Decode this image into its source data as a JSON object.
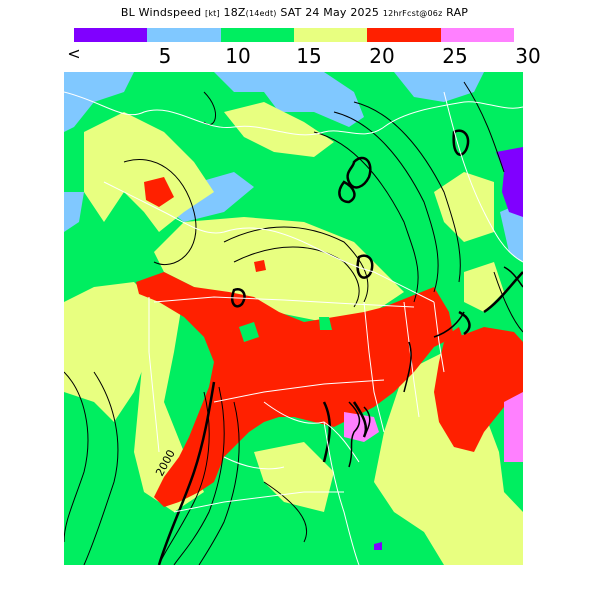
{
  "title": {
    "main": "BL Windspeed",
    "unit": "[kt]",
    "valid": "18Z",
    "local": "(14edt)",
    "date": "SAT 24 May 2025",
    "fcst": "12hrFcst@06z",
    "model": "RAP"
  },
  "legend": {
    "under_label": "<",
    "ticks": [
      "5",
      "10",
      "15",
      "20",
      "25",
      "30"
    ],
    "colors": [
      "#8000ff",
      "#80c8ff",
      "#00ee60",
      "#e8ff80",
      "#ff2000",
      "#ff80ff"
    ]
  },
  "contour_label": "2000",
  "colors": {
    "calm": "#8000ff",
    "light": "#80c8ff",
    "moderate": "#00ee60",
    "fresh": "#e8ff80",
    "strong": "#ff2000",
    "gale": "#ff80ff",
    "border": "#ffffff",
    "contour": "#000000"
  }
}
